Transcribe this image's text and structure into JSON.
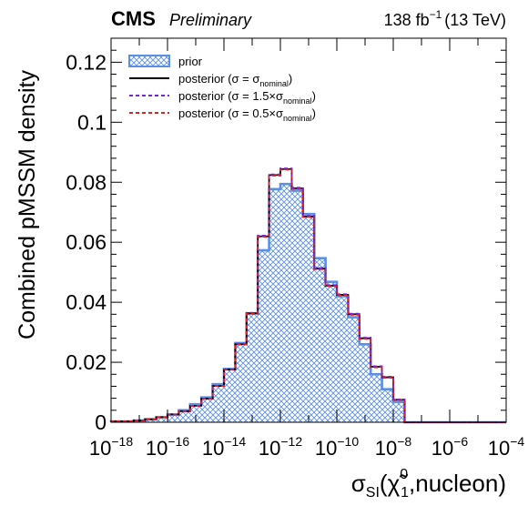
{
  "header": {
    "experiment": "CMS",
    "status": "Preliminary",
    "lumi_value": "138 fb",
    "lumi_exp": "−1",
    "energy": "(13 TeV)"
  },
  "chart_data": {
    "type": "histogram",
    "ylabel": "Combined pMSSM density",
    "xlabel": {
      "sigma": "σ",
      "sub": "SI",
      "open": "(",
      "chi": "χ̃",
      "chi_sub": "1",
      "chi_sup": "0",
      "rest": ",nucleon)"
    },
    "x_scale": "log",
    "xlim": [
      1e-18,
      0.0001
    ],
    "ylim": [
      0,
      0.128
    ],
    "x_ticks": [
      {
        "base": "10",
        "exp": "−18",
        "value": -18
      },
      {
        "base": "10",
        "exp": "−16",
        "value": -16
      },
      {
        "base": "10",
        "exp": "−14",
        "value": -14
      },
      {
        "base": "10",
        "exp": "−12",
        "value": -12
      },
      {
        "base": "10",
        "exp": "−10",
        "value": -10
      },
      {
        "base": "10",
        "exp": "−8",
        "value": -8
      },
      {
        "base": "10",
        "exp": "−6",
        "value": -6
      },
      {
        "base": "10",
        "exp": "−4",
        "value": -4
      }
    ],
    "y_ticks": [
      {
        "label": "0",
        "value": 0
      },
      {
        "label": "0.02",
        "value": 0.02
      },
      {
        "label": "0.04",
        "value": 0.04
      },
      {
        "label": "0.06",
        "value": 0.06
      },
      {
        "label": "0.08",
        "value": 0.08
      },
      {
        "label": "0.1",
        "value": 0.1
      },
      {
        "label": "0.12",
        "value": 0.12
      }
    ],
    "bin_edges_log10": [
      -18.0,
      -17.6,
      -17.2,
      -16.8,
      -16.4,
      -16.0,
      -15.6,
      -15.2,
      -14.8,
      -14.4,
      -14.0,
      -13.6,
      -13.2,
      -12.8,
      -12.4,
      -12.0,
      -11.6,
      -11.2,
      -10.8,
      -10.4,
      -10.0,
      -9.6,
      -9.2,
      -8.8,
      -8.4,
      -8.0,
      -7.6,
      -7.2,
      -6.8,
      -6.4,
      -6.0,
      -5.6,
      -5.2,
      -4.8,
      -4.4,
      -4.0
    ],
    "legend": {
      "position": "top-left",
      "entries": [
        {
          "id": "prior",
          "text": "prior",
          "sub": "",
          "tail": "",
          "style": "hatched-fill",
          "color": "#5b8fe8"
        },
        {
          "id": "nominal",
          "text": "posterior (σ = σ",
          "sub": "nominal",
          "tail": ")",
          "style": "solid",
          "color": "#000000"
        },
        {
          "id": "up",
          "text": "posterior (σ = 1.5×σ",
          "sub": "nominal",
          "tail": ")",
          "style": "dashed",
          "color": "#7b22e0"
        },
        {
          "id": "down",
          "text": "posterior (σ = 0.5×σ",
          "sub": "nominal",
          "tail": ")",
          "style": "dashed",
          "color": "#e02020"
        }
      ]
    },
    "series": [
      {
        "name": "prior",
        "style": "hatched-fill",
        "color": "#5b8fe8",
        "values": [
          0.0003,
          0.0003,
          0.0006,
          0.001,
          0.0017,
          0.0026,
          0.004,
          0.006,
          0.0083,
          0.0127,
          0.0178,
          0.0264,
          0.0363,
          0.0573,
          0.0777,
          0.0794,
          0.0772,
          0.0694,
          0.0547,
          0.0468,
          0.042,
          0.035,
          0.026,
          0.016,
          0.011,
          0.0068,
          0.0,
          0.0,
          0.0,
          0.0,
          0.0,
          0.0,
          0.0,
          0.0,
          0.0
        ]
      },
      {
        "name": "posterior (σ = σnominal)",
        "style": "solid",
        "color": "#000000",
        "values": [
          0.0003,
          0.0003,
          0.0006,
          0.001,
          0.0017,
          0.0026,
          0.0037,
          0.0055,
          0.0079,
          0.0121,
          0.0176,
          0.026,
          0.0363,
          0.062,
          0.0824,
          0.0844,
          0.078,
          0.0686,
          0.0512,
          0.0455,
          0.0425,
          0.036,
          0.028,
          0.0185,
          0.015,
          0.0075,
          0.0,
          0.0,
          0.0,
          0.0,
          0.0,
          0.0,
          0.0,
          0.0,
          0.0
        ]
      },
      {
        "name": "posterior (σ = 1.5×σnominal)",
        "style": "dashed",
        "color": "#7b22e0",
        "values": [
          0.0003,
          0.0003,
          0.0006,
          0.001,
          0.0017,
          0.0026,
          0.0037,
          0.0055,
          0.0079,
          0.0121,
          0.0176,
          0.0262,
          0.0365,
          0.0622,
          0.0826,
          0.0846,
          0.0782,
          0.0688,
          0.0514,
          0.0457,
          0.0427,
          0.0362,
          0.0282,
          0.0187,
          0.0152,
          0.0076,
          0.0,
          0.0,
          0.0,
          0.0,
          0.0,
          0.0,
          0.0,
          0.0,
          0.0
        ]
      },
      {
        "name": "posterior (σ = 0.5×σnominal)",
        "style": "dashed",
        "color": "#e02020",
        "values": [
          0.0003,
          0.0003,
          0.0006,
          0.001,
          0.0017,
          0.0026,
          0.0037,
          0.0055,
          0.0079,
          0.0121,
          0.0176,
          0.0259,
          0.0361,
          0.0618,
          0.0822,
          0.0842,
          0.0778,
          0.0684,
          0.051,
          0.0453,
          0.0423,
          0.0358,
          0.0278,
          0.0183,
          0.0148,
          0.0074,
          0.0,
          0.0,
          0.0,
          0.0,
          0.0,
          0.0,
          0.0,
          0.0,
          0.0
        ]
      }
    ]
  }
}
